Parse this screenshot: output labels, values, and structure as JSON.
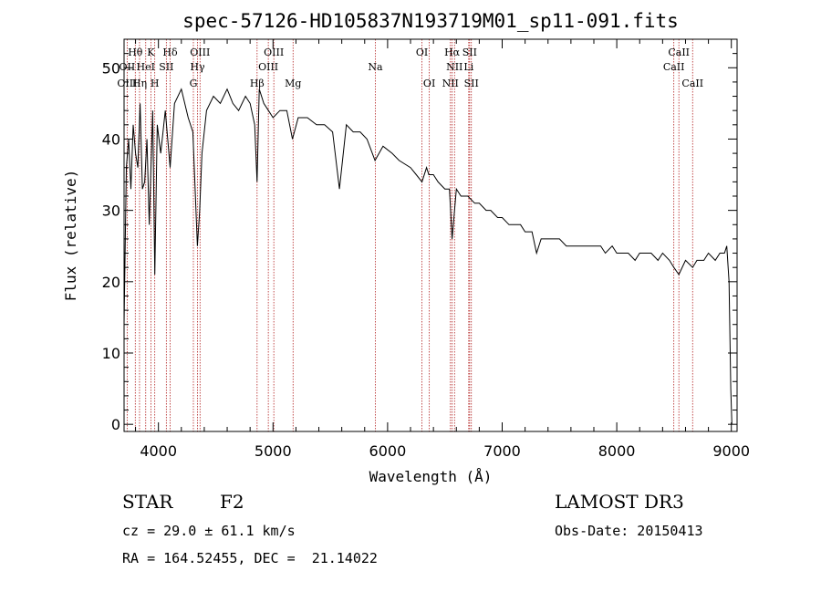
{
  "chart_data": {
    "type": "line",
    "title": "spec-57126-HD105837N193719M01_sp11-091.fits",
    "xlabel": "Wavelength (Å)",
    "ylabel": "Flux (relative)",
    "xlim": [
      3700,
      9050
    ],
    "ylim": [
      -1,
      54
    ],
    "xticks": [
      4000,
      5000,
      6000,
      7000,
      8000,
      9000
    ],
    "yticks": [
      0,
      10,
      20,
      30,
      40,
      50
    ],
    "x": [
      3700,
      3720,
      3740,
      3760,
      3780,
      3800,
      3820,
      3840,
      3860,
      3880,
      3900,
      3920,
      3935,
      3950,
      3968,
      3990,
      4020,
      4060,
      4102,
      4140,
      4200,
      4260,
      4300,
      4320,
      4340,
      4360,
      4380,
      4420,
      4480,
      4540,
      4600,
      4650,
      4700,
      4760,
      4800,
      4840,
      4861,
      4880,
      4920,
      4960,
      5000,
      5060,
      5120,
      5170,
      5220,
      5300,
      5380,
      5450,
      5520,
      5580,
      5640,
      5700,
      5760,
      5820,
      5890,
      5960,
      6040,
      6100,
      6200,
      6250,
      6300,
      6340,
      6360,
      6400,
      6440,
      6500,
      6540,
      6563,
      6600,
      6640,
      6700,
      6760,
      6800,
      6860,
      6900,
      6960,
      7000,
      7060,
      7100,
      7160,
      7200,
      7260,
      7300,
      7340,
      7400,
      7460,
      7500,
      7560,
      7600,
      7660,
      7700,
      7760,
      7800,
      7860,
      7900,
      7960,
      8000,
      8060,
      8100,
      8160,
      8200,
      8260,
      8300,
      8360,
      8400,
      8460,
      8498,
      8542,
      8600,
      8662,
      8700,
      8760,
      8800,
      8860,
      8900,
      8940,
      8960,
      8980,
      8995,
      9005
    ],
    "y": [
      14,
      36,
      40,
      33,
      42,
      38,
      36,
      45,
      33,
      34,
      40,
      28,
      36,
      44,
      21,
      42,
      38,
      44,
      36,
      45,
      47,
      43,
      41,
      33,
      25,
      30,
      38,
      44,
      46,
      45,
      47,
      45,
      44,
      46,
      45,
      42,
      34,
      47,
      45,
      44,
      43,
      44,
      44,
      40,
      43,
      43,
      42,
      42,
      41,
      33,
      42,
      41,
      41,
      40,
      37,
      39,
      38,
      37,
      36,
      35,
      34,
      36,
      35,
      35,
      34,
      33,
      33,
      26,
      33,
      32,
      32,
      31,
      31,
      30,
      30,
      29,
      29,
      28,
      28,
      28,
      27,
      27,
      24,
      26,
      26,
      26,
      26,
      25,
      25,
      25,
      25,
      25,
      25,
      25,
      24,
      25,
      24,
      24,
      24,
      23,
      24,
      24,
      24,
      23,
      24,
      23,
      22,
      21,
      23,
      22,
      23,
      23,
      24,
      23,
      24,
      24,
      25,
      20,
      5,
      0
    ],
    "spectral_lines": [
      {
        "name": "Hθ",
        "wavelength": 3798,
        "row": 1
      },
      {
        "name": "OII",
        "wavelength": 3727,
        "row": 2
      },
      {
        "name": "OIII",
        "wavelength": 3727,
        "row": 3
      },
      {
        "name": "Hη",
        "wavelength": 3835,
        "row": 3
      },
      {
        "name": "K",
        "wavelength": 3934,
        "row": 1
      },
      {
        "name": "HeI",
        "wavelength": 3889,
        "row": 2
      },
      {
        "name": "H",
        "wavelength": 3968,
        "row": 3
      },
      {
        "name": "Hδ",
        "wavelength": 4102,
        "row": 1
      },
      {
        "name": "SII",
        "wavelength": 4069,
        "row": 2
      },
      {
        "name": "OIII",
        "wavelength": 4363,
        "row": 1
      },
      {
        "name": "Hγ",
        "wavelength": 4341,
        "row": 2
      },
      {
        "name": "G",
        "wavelength": 4305,
        "row": 3
      },
      {
        "name": "OIII",
        "wavelength": 5007,
        "row": 1
      },
      {
        "name": "OIII",
        "wavelength": 4959,
        "row": 2
      },
      {
        "name": "Hβ",
        "wavelength": 4861,
        "row": 3
      },
      {
        "name": "Mg",
        "wavelength": 5175,
        "row": 3
      },
      {
        "name": "Na",
        "wavelength": 5893,
        "row": 2
      },
      {
        "name": "OI",
        "wavelength": 6300,
        "row": 1
      },
      {
        "name": "OI",
        "wavelength": 6364,
        "row": 3
      },
      {
        "name": "Hα",
        "wavelength": 6563,
        "row": 1
      },
      {
        "name": "SII",
        "wavelength": 6716,
        "row": 1
      },
      {
        "name": "NII",
        "wavelength": 6584,
        "row": 2
      },
      {
        "name": "Li",
        "wavelength": 6708,
        "row": 2
      },
      {
        "name": "NII",
        "wavelength": 6548,
        "row": 3
      },
      {
        "name": "SII",
        "wavelength": 6731,
        "row": 3
      },
      {
        "name": "CaII",
        "wavelength": 8542,
        "row": 1
      },
      {
        "name": "CaII",
        "wavelength": 8498,
        "row": 2
      },
      {
        "name": "CaII",
        "wavelength": 8662,
        "row": 3
      }
    ]
  },
  "info": {
    "class_label": "STAR",
    "subclass": "F2",
    "survey": "LAMOST DR3",
    "cz": "cz = 29.0 ± 61.1 km/s",
    "obs_date": "Obs-Date: 20150413",
    "coords": "RA = 164.52455, DEC =  21.14022"
  },
  "colors": {
    "spectrum": "#000000",
    "line_marker": "#b22222"
  }
}
